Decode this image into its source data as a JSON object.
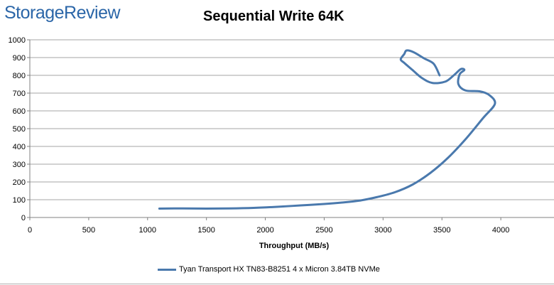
{
  "header": {
    "logo_text": "StorageReview",
    "chart_title": "Sequential Write 64K"
  },
  "colors": {
    "series": "#4a79ad",
    "logo": "#2b66a8",
    "grid": "#a6a6a6"
  },
  "chart_data": {
    "type": "line",
    "title": "Sequential Write 64K",
    "xlabel": "Throughput (MB/s)",
    "ylabel": "",
    "xlim": [
      0,
      4500
    ],
    "ylim": [
      0,
      1000
    ],
    "x_ticks": [
      "0",
      "500",
      "1000",
      "1500",
      "2000",
      "2500",
      "3000",
      "3500",
      "4000",
      "4"
    ],
    "y_ticks": [
      "0",
      "100",
      "200",
      "300",
      "400",
      "500",
      "600",
      "700",
      "800",
      "900",
      "1000"
    ],
    "grid": "horizontal",
    "legend_position": "bottom",
    "series": [
      {
        "name": "Tyan Transport HX TN83-B8251 4 x Micron 3.84TB NVMe",
        "points": [
          [
            1100,
            50
          ],
          [
            1300,
            51
          ],
          [
            1500,
            50
          ],
          [
            1700,
            51
          ],
          [
            1900,
            54
          ],
          [
            2100,
            60
          ],
          [
            2300,
            68
          ],
          [
            2500,
            76
          ],
          [
            2650,
            84
          ],
          [
            2800,
            95
          ],
          [
            2950,
            115
          ],
          [
            3100,
            142
          ],
          [
            3250,
            185
          ],
          [
            3400,
            250
          ],
          [
            3550,
            335
          ],
          [
            3700,
            440
          ],
          [
            3850,
            560
          ],
          [
            3950,
            640
          ],
          [
            3900,
            690
          ],
          [
            3820,
            710
          ],
          [
            3700,
            715
          ],
          [
            3640,
            750
          ],
          [
            3650,
            805
          ],
          [
            3690,
            830
          ],
          [
            3660,
            835
          ],
          [
            3600,
            800
          ],
          [
            3530,
            765
          ],
          [
            3420,
            757
          ],
          [
            3330,
            785
          ],
          [
            3250,
            830
          ],
          [
            3180,
            870
          ],
          [
            3150,
            890
          ],
          [
            3180,
            920
          ],
          [
            3200,
            940
          ],
          [
            3260,
            930
          ],
          [
            3350,
            895
          ],
          [
            3430,
            865
          ],
          [
            3480,
            800
          ]
        ]
      }
    ]
  }
}
